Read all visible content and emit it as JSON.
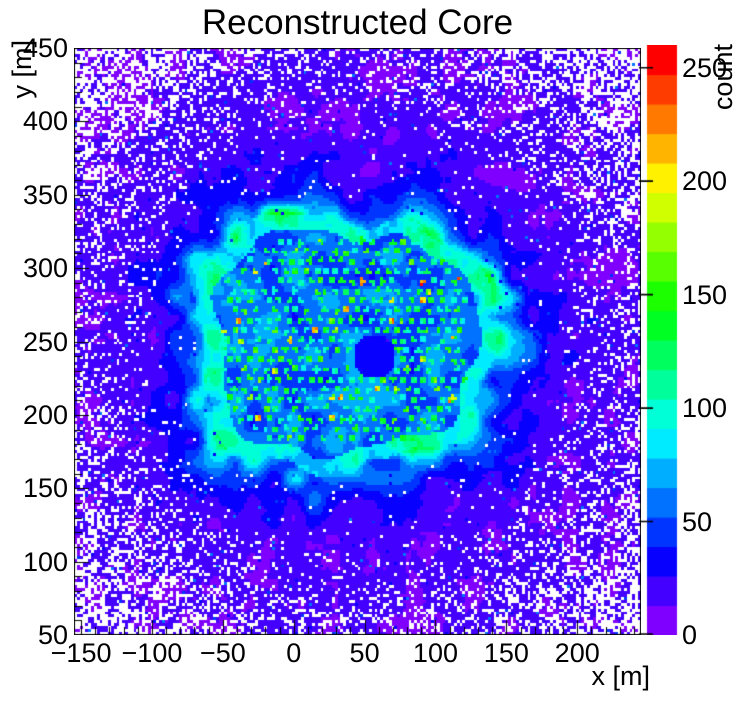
{
  "chart_data": {
    "type": "heatmap",
    "title": "Reconstructed Core",
    "xlabel": "x [m]",
    "ylabel": "y [m]",
    "zlabel": "count",
    "xlim": [
      -155,
      245
    ],
    "ylim": [
      50,
      450
    ],
    "zlim": [
      0,
      260
    ],
    "bin_size_m": 2,
    "xtick_values": [
      -150,
      -100,
      -50,
      0,
      50,
      100,
      150,
      200
    ],
    "xtick_labels": [
      "−150",
      "−100",
      "−50",
      "0",
      "50",
      "100",
      "150",
      "200"
    ],
    "ytick_values": [
      50,
      100,
      150,
      200,
      250,
      300,
      350,
      400,
      450
    ],
    "ytick_labels": [
      "50",
      "100",
      "150",
      "200",
      "250",
      "300",
      "350",
      "400",
      "450"
    ],
    "ztick_values": [
      0,
      50,
      100,
      150,
      200,
      250
    ],
    "ztick_labels": [
      "0",
      "50",
      "100",
      "150",
      "200",
      "250"
    ],
    "minor_tick_step_m": 10,
    "grid": false,
    "legend_position": "right-colorbar",
    "zero_bin_color": "#ffffff",
    "palette_bottom_to_top": [
      "#8000ff",
      "#4300ff",
      "#0700ff",
      "#0035ff",
      "#0072ff",
      "#00aeff",
      "#00ebff",
      "#00ffd7",
      "#00ff9a",
      "#00ff5e",
      "#00ff22",
      "#1bff00",
      "#57ff00",
      "#93ff00",
      "#d0ff00",
      "#fff100",
      "#ffb500",
      "#ff7900",
      "#ff3c00",
      "#ff0000"
    ],
    "model": {
      "seed": 1337,
      "background": {
        "count_range": [
          4,
          26
        ],
        "sparse_bright_fraction": 0.015,
        "zero_fraction_center": 0.02,
        "zero_fraction_corner": 0.6,
        "zero_onset_radial": 0.5
      },
      "plateau": {
        "center_x": 35,
        "center_y": 250,
        "half_width_x": 100,
        "half_width_y": 82,
        "shape_power": 3,
        "interior_count_range": [
          26,
          90
        ],
        "rim_count_range": [
          60,
          132
        ],
        "halo_peak": 95,
        "halo_decay": 5.5,
        "hole_center": [
          57,
          240
        ],
        "hole_radius": 15,
        "hole_count_range": [
          22,
          40
        ]
      },
      "detector_grid": {
        "x_spacing": 7.2,
        "row_spacing": 6.7,
        "stagger": 3.6,
        "jitter": 1.0,
        "x_start": -60,
        "x_end": 130,
        "y_start": 184,
        "y_end": 318,
        "inset_half_width_x": 88,
        "inset_half_width_y": 72,
        "missing_fraction": 0.12,
        "dot_radius_m": 2.1,
        "dot_count_range": [
          92,
          152
        ],
        "bright_green_fraction": 0.1,
        "orange_fraction": 0.02
      },
      "hotspots": [
        {
          "x": 116,
          "y": 292,
          "count": 235
        },
        {
          "x": 112,
          "y": 253,
          "count": 218
        },
        {
          "x": 110,
          "y": 208,
          "count": 228
        },
        {
          "x": -20,
          "y": 303,
          "count": 210
        }
      ]
    }
  }
}
